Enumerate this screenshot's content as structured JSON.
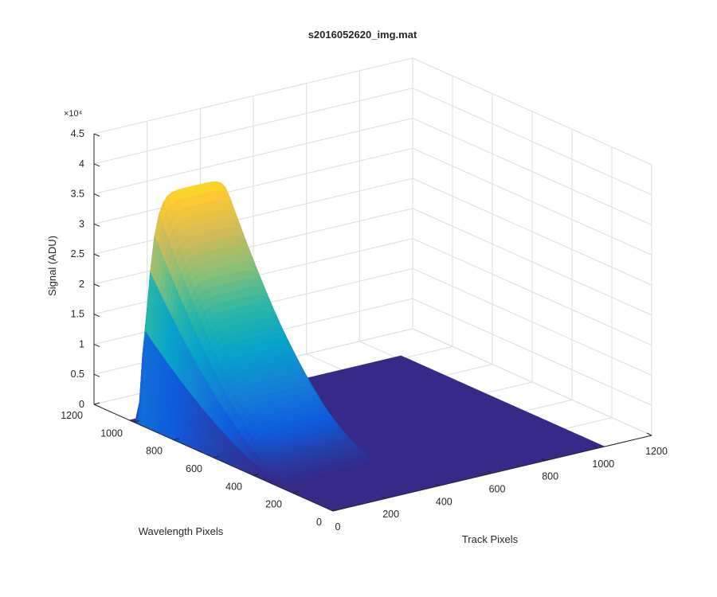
{
  "chart_data": {
    "type": "surface",
    "title": "s2016052620_img.mat",
    "xlabel": "Track Pixels",
    "ylabel": "Wavelength Pixels",
    "zlabel": "Signal (ADU)",
    "z_exponent_label": "×10⁴",
    "xlim": [
      0,
      1200
    ],
    "ylim": [
      0,
      1200
    ],
    "zlim": [
      0,
      45000
    ],
    "x_ticks": [
      "0",
      "200",
      "400",
      "600",
      "800",
      "1000",
      "1200"
    ],
    "y_ticks": [
      "0",
      "200",
      "400",
      "600",
      "800",
      "1000",
      "1200"
    ],
    "z_ticks": [
      "0",
      "0.5",
      "1",
      "1.5",
      "2",
      "2.5",
      "3",
      "3.5",
      "4",
      "4.5"
    ],
    "grid": true,
    "colormap": [
      "#352a87",
      "#0f5cdd",
      "#1481d6",
      "#06a4ca",
      "#2eb7a4",
      "#87bf77",
      "#d1bb59",
      "#fec832",
      "#f9fb0e"
    ],
    "floor_color": "#352a87",
    "surface_extent": {
      "x": [
        0,
        1024
      ],
      "y": [
        0,
        1024
      ]
    },
    "peak": {
      "x_range": [
        0,
        400
      ],
      "y_rising_edge": 1000,
      "y_decay_to_zero": 250,
      "max_signal": 41000
    }
  }
}
